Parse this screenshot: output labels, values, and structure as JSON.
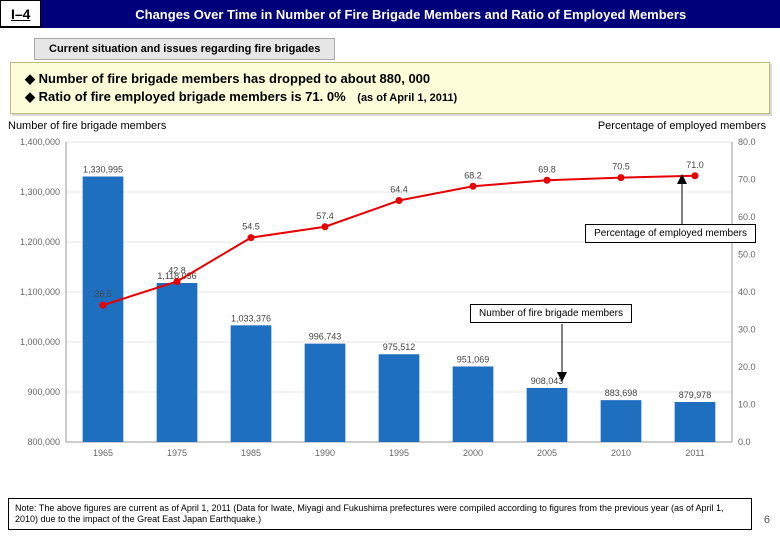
{
  "header": {
    "section_tag": "I–4",
    "title": "Changes Over Time in Number of Fire Brigade Members and Ratio of Employed Members",
    "sub": "Current situation and issues regarding fire brigades"
  },
  "callout": {
    "bullet1": "◆ Number of fire brigade members has dropped to about 880, 000",
    "bullet2": "◆ Ratio of fire employed brigade members is 71. 0%",
    "aside": "(as of April 1, 2011)"
  },
  "axis_labels": {
    "left": "Number of fire brigade members",
    "right": "Percentage of employed members"
  },
  "chart": {
    "type": "bar+line",
    "background_color": "#ffffff",
    "grid_color": "#e6e6e6",
    "axis_color": "#999999",
    "bar_color": "#1f6fc0",
    "line_color": "#e60000",
    "marker_color": "#e60000",
    "categories": [
      "1965",
      "1975",
      "1985",
      "1990",
      "1995",
      "2000",
      "2005",
      "2010",
      "2011"
    ],
    "bars": [
      1330995,
      1118036,
      1033376,
      996743,
      975512,
      951069,
      908043,
      883698,
      879978
    ],
    "bar_labels": [
      "1,330,995",
      "1,118,036",
      "1,033,376",
      "996,743",
      "975,512",
      "951,069",
      "908,043",
      "883,698",
      "879,978"
    ],
    "line": [
      36.5,
      42.8,
      54.5,
      57.4,
      64.4,
      68.2,
      69.8,
      70.5,
      71.0
    ],
    "line_labels": [
      "36.5",
      "42.8",
      "54.5",
      "57.4",
      "64.4",
      "68.2",
      "69.8",
      "70.5",
      "71.0"
    ],
    "left_axis": {
      "min": 800000,
      "max": 1400000,
      "step": 100000,
      "ticks": [
        "800,000",
        "900,000",
        "1,000,000",
        "1,100,000",
        "1,200,000",
        "1,300,000",
        "1,400,000"
      ]
    },
    "right_axis": {
      "min": 0,
      "max": 80,
      "step": 10,
      "ticks": [
        "0.0",
        "10.0",
        "20.0",
        "30.0",
        "40.0",
        "50.0",
        "60.0",
        "70.0",
        "80.0"
      ]
    },
    "annotation_line": "Percentage of employed members",
    "annotation_bar": "Number of fire brigade members"
  },
  "footnote": "Note: The above figures are current as of April 1, 2011 (Data for Iwate, Miyagi and Fukushima prefectures were compiled according to figures from the previous year (as of April 1, 2010) due to the impact of the Great East Japan Earthquake.)",
  "page_number": "6"
}
